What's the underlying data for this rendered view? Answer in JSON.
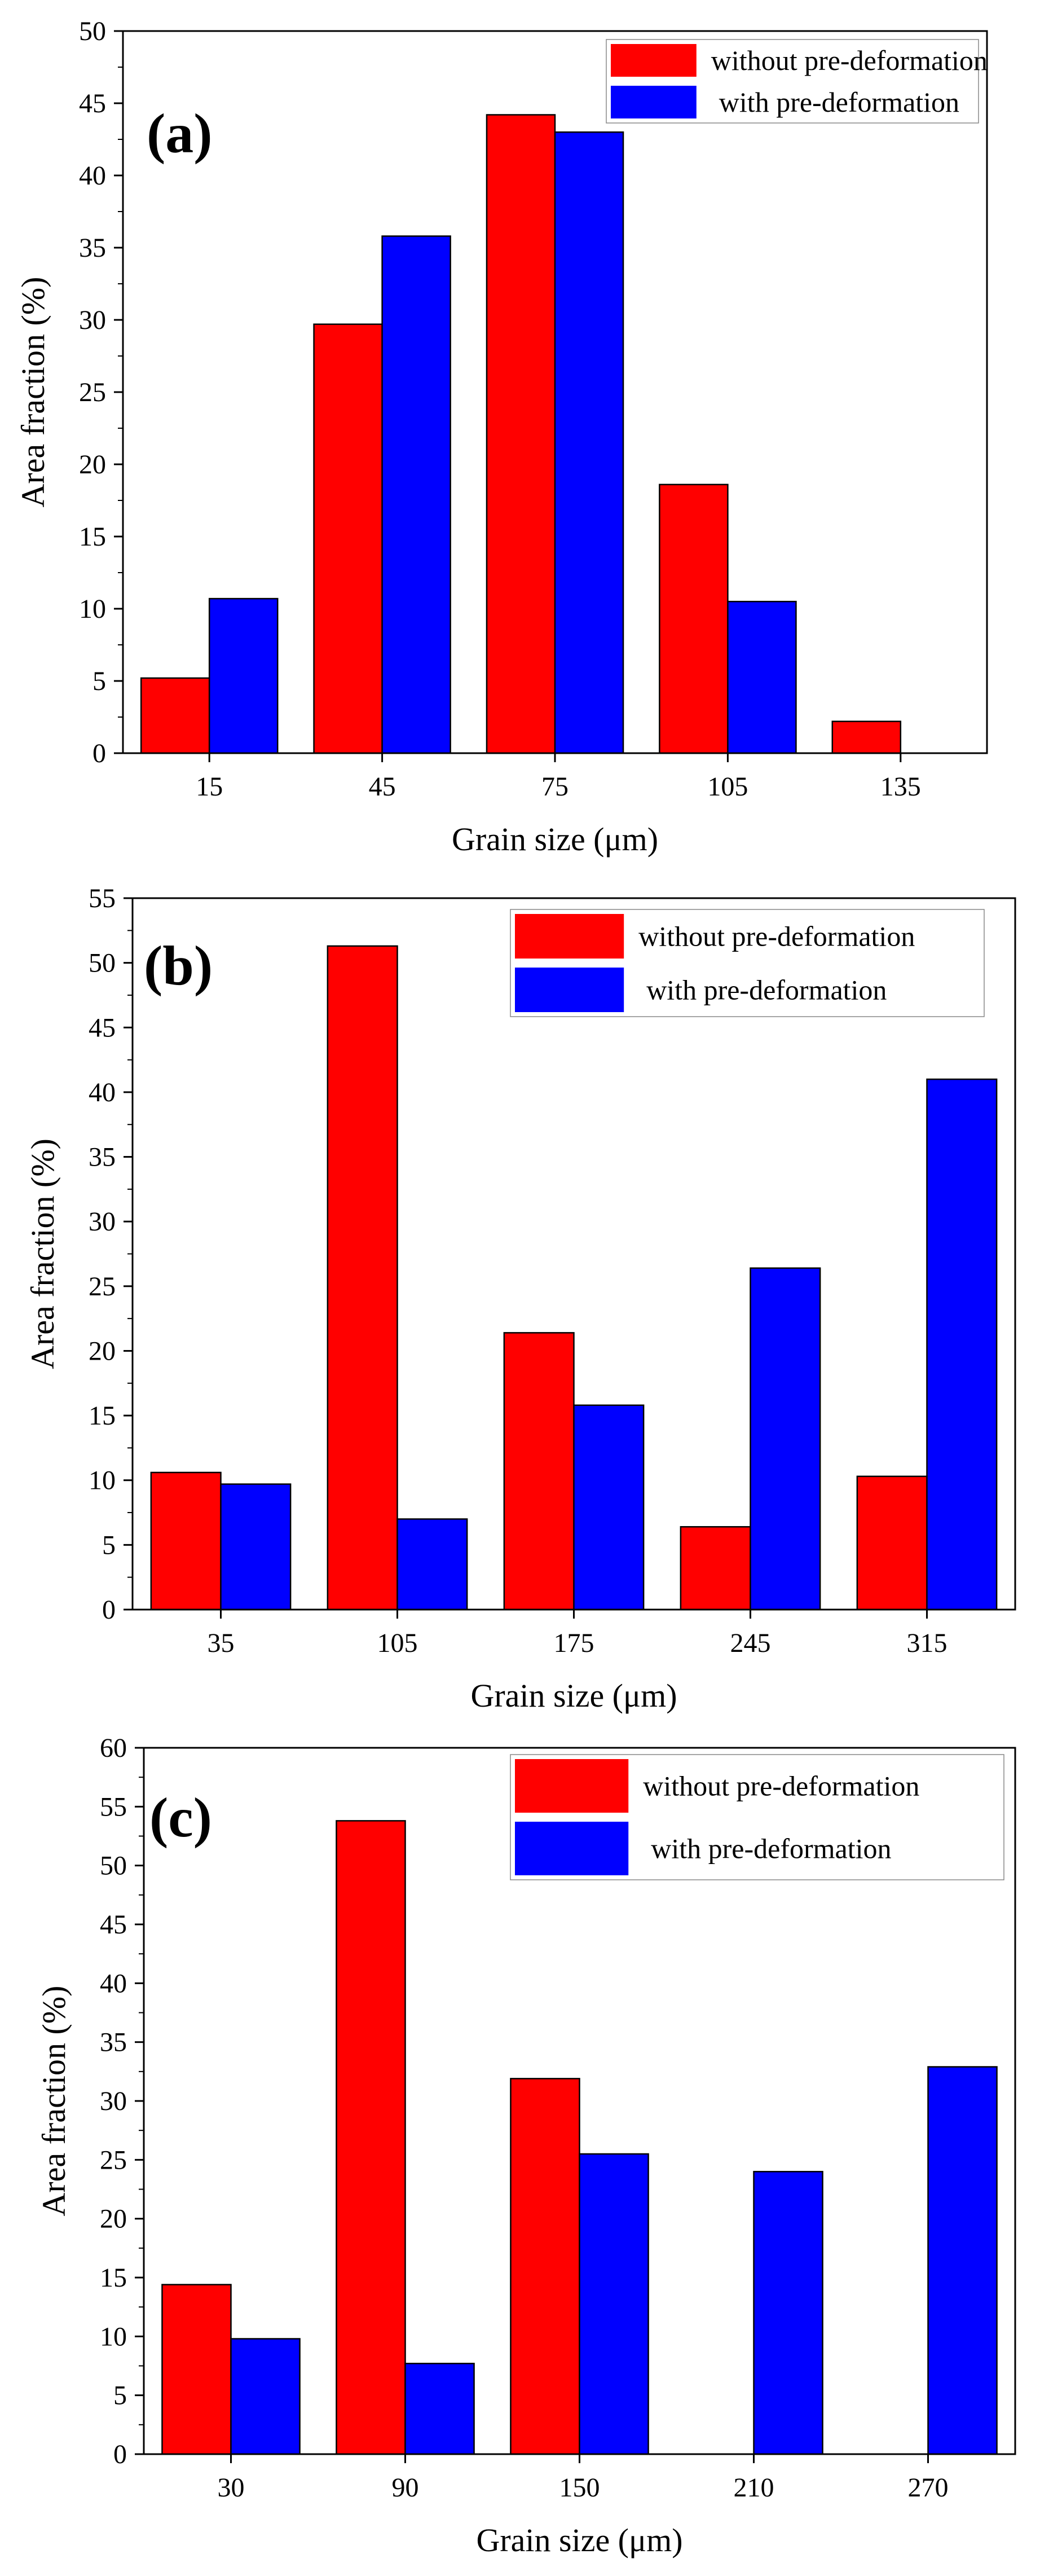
{
  "figure": {
    "colors": {
      "without": "#ff0000",
      "with": "#0000ff",
      "axis": "#000000"
    }
  },
  "chart_data": [
    {
      "type": "bar",
      "panel_label": "(a)",
      "categories": [
        "15",
        "45",
        "75",
        "105",
        "135"
      ],
      "series": [
        {
          "name": "without pre-deformation",
          "values": [
            5.2,
            29.7,
            44.2,
            18.6,
            2.2
          ]
        },
        {
          "name": "with pre-deformation",
          "values": [
            10.7,
            35.8,
            43.0,
            10.5,
            0
          ]
        }
      ],
      "xlabel": "Grain size (μm)",
      "ylabel": "Area fraction (%)",
      "ylim": [
        0,
        50
      ],
      "yticks": [
        "0",
        "5",
        "10",
        "15",
        "20",
        "25",
        "30",
        "35",
        "40",
        "45",
        "50"
      ],
      "legend_position": "top-right",
      "grid": false
    },
    {
      "type": "bar",
      "panel_label": "(b)",
      "categories": [
        "35",
        "105",
        "175",
        "245",
        "315"
      ],
      "series": [
        {
          "name": "without pre-deformation",
          "values": [
            10.6,
            51.3,
            21.4,
            6.4,
            10.3
          ]
        },
        {
          "name": "with pre-deformation",
          "values": [
            9.7,
            7.0,
            15.8,
            26.4,
            41.0
          ]
        }
      ],
      "xlabel": "Grain size (μm)",
      "ylabel": "Area fraction (%)",
      "ylim": [
        0,
        55
      ],
      "yticks": [
        "0",
        "5",
        "10",
        "15",
        "20",
        "25",
        "30",
        "35",
        "40",
        "45",
        "50",
        "55"
      ],
      "legend_position": "top-right",
      "grid": false
    },
    {
      "type": "bar",
      "panel_label": "(c)",
      "categories": [
        "30",
        "90",
        "150",
        "210",
        "270"
      ],
      "series": [
        {
          "name": "without pre-deformation",
          "values": [
            14.4,
            53.8,
            31.9,
            0,
            0
          ]
        },
        {
          "name": "with pre-deformation",
          "values": [
            9.8,
            7.7,
            25.5,
            24.0,
            32.9
          ]
        }
      ],
      "xlabel": "Grain size (μm)",
      "ylabel": "Area fraction (%)",
      "ylim": [
        0,
        60
      ],
      "yticks": [
        "0",
        "5",
        "10",
        "15",
        "20",
        "25",
        "30",
        "35",
        "40",
        "45",
        "50",
        "55",
        "60"
      ],
      "legend_position": "top-right",
      "grid": false
    }
  ]
}
